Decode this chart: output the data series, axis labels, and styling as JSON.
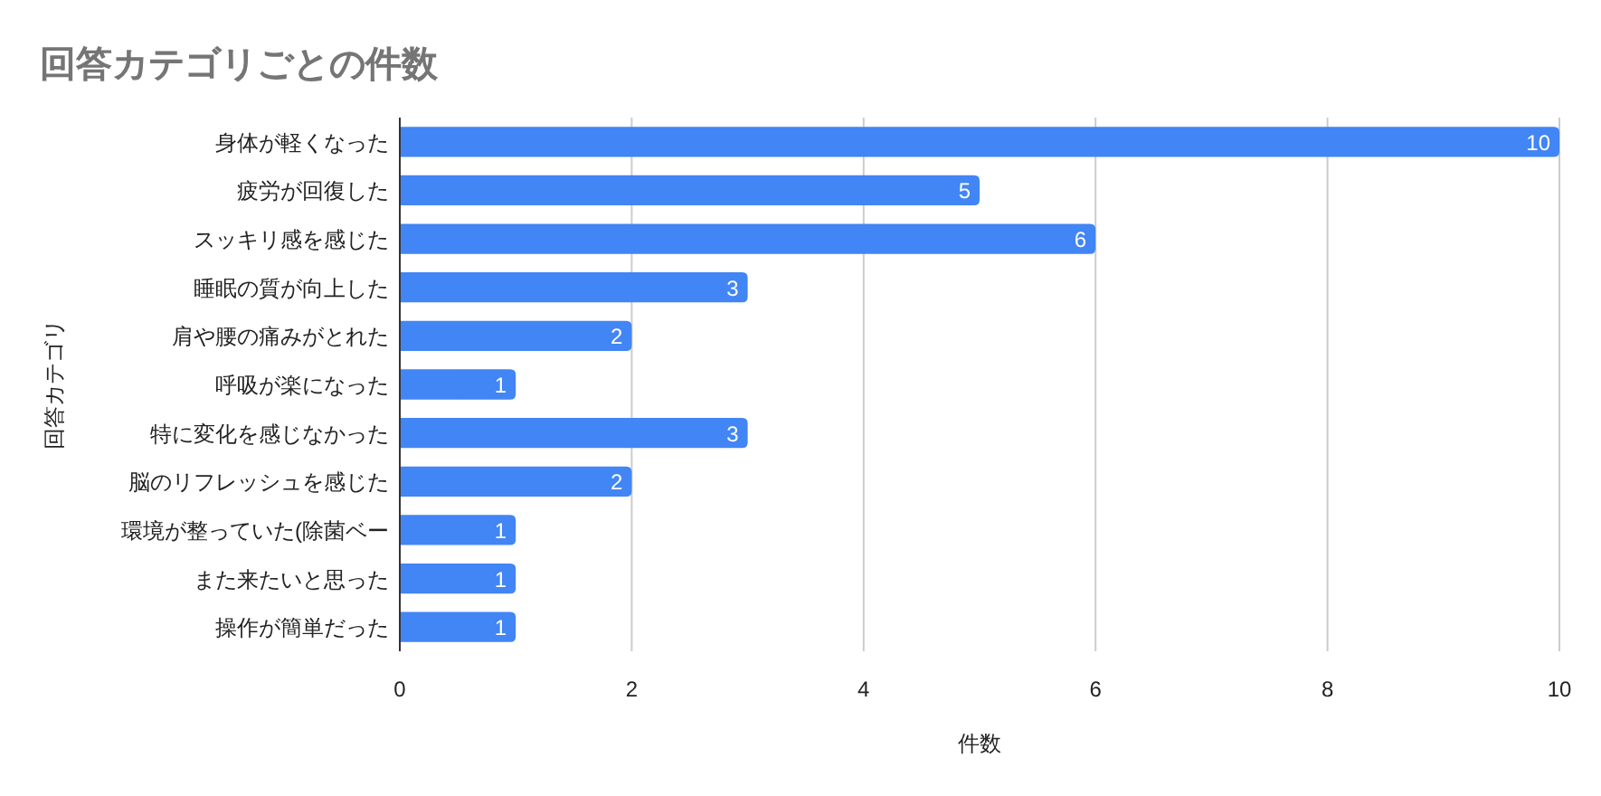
{
  "chart_data": {
    "type": "bar",
    "orientation": "horizontal",
    "title": "回答カテゴリごとの件数",
    "xlabel": "件数",
    "ylabel": "回答カテゴリ",
    "categories": [
      "身体が軽くなった",
      "疲労が回復した",
      "スッキリ感を感じた",
      "睡眠の質が向上した",
      "肩や腰の痛みがとれた",
      "呼吸が楽になった",
      "特に変化を感じなかった",
      "脳のリフレッシュを感じた",
      "環境が整っていた(除菌ベー",
      "また来たいと思った",
      "操作が簡単だった"
    ],
    "values": [
      10,
      5,
      6,
      3,
      2,
      1,
      3,
      2,
      1,
      1,
      1
    ],
    "color": "#4285f4",
    "xlim": [
      0,
      10
    ],
    "xticks": [
      0,
      2,
      4,
      6,
      8,
      10
    ],
    "grid": "x",
    "data_labels": true
  }
}
